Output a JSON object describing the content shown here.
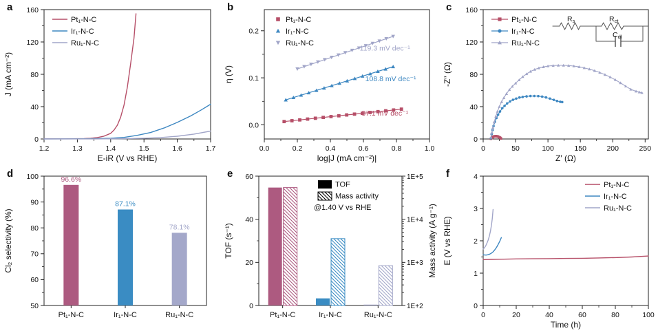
{
  "figure_background": "#ffffff",
  "colors": {
    "pt": "#b64f68",
    "ir": "#3d87c1",
    "ru": "#a1a5c8",
    "pt_bar": "#ad5a80",
    "ir_bar": "#3a8cc3",
    "ru_bar": "#a4a8ca",
    "axis": "#222222",
    "text": "#111111",
    "circuit": "#555555",
    "legend_black": "#000000"
  },
  "catalysts": [
    "Pt₁-N-C",
    "Ir₁-N-C",
    "Ru₁-N-C"
  ],
  "chart_data": [
    {
      "panel": "a",
      "type": "line",
      "xlabel": "E-iR (V vs RHE)",
      "ylabel": "J (mA cm⁻²)",
      "xlim": [
        1.2,
        1.7
      ],
      "xticks": [
        1.2,
        1.3,
        1.4,
        1.5,
        1.6,
        1.7
      ],
      "xtick_labels": [
        "1.2",
        "1.3",
        "1.4",
        "1.5",
        "1.6",
        "1.7"
      ],
      "ylim": [
        0,
        160
      ],
      "yticks": [
        0,
        40,
        80,
        120,
        160
      ],
      "ytick_labels": [
        "0",
        "40",
        "80",
        "120",
        "160"
      ],
      "legend_position": "top-left",
      "legend_style": "line",
      "series": [
        {
          "name": "Pt₁-N-C",
          "color": "pt",
          "points": [
            [
              1.2,
              0.2
            ],
            [
              1.26,
              0.2
            ],
            [
              1.3,
              0.3
            ],
            [
              1.32,
              0.5
            ],
            [
              1.34,
              0.9
            ],
            [
              1.36,
              1.8
            ],
            [
              1.38,
              3.5
            ],
            [
              1.4,
              7
            ],
            [
              1.41,
              11
            ],
            [
              1.42,
              17
            ],
            [
              1.43,
              27
            ],
            [
              1.44,
              42
            ],
            [
              1.45,
              64
            ],
            [
              1.46,
              93
            ],
            [
              1.47,
              125
            ],
            [
              1.476,
              155
            ]
          ]
        },
        {
          "name": "Ir₁-N-C",
          "color": "ir",
          "points": [
            [
              1.2,
              0.1
            ],
            [
              1.3,
              0.2
            ],
            [
              1.36,
              0.4
            ],
            [
              1.4,
              0.9
            ],
            [
              1.44,
              2.0
            ],
            [
              1.48,
              4.5
            ],
            [
              1.52,
              8.0
            ],
            [
              1.56,
              13.5
            ],
            [
              1.6,
              20.5
            ],
            [
              1.64,
              28.5
            ],
            [
              1.67,
              35.5
            ],
            [
              1.7,
              43.0
            ]
          ]
        },
        {
          "name": "Ru₁-N-C",
          "color": "ru",
          "points": [
            [
              1.2,
              0.0
            ],
            [
              1.36,
              0.1
            ],
            [
              1.44,
              0.4
            ],
            [
              1.5,
              0.9
            ],
            [
              1.55,
              1.8
            ],
            [
              1.6,
              3.4
            ],
            [
              1.65,
              6.0
            ],
            [
              1.7,
              9.8
            ]
          ]
        }
      ]
    },
    {
      "panel": "b",
      "type": "tafel",
      "xlabel": "log|J (mA cm⁻²)|",
      "ylabel": "η (V)",
      "xlim": [
        0.0,
        1.0
      ],
      "xticks": [
        0.0,
        0.2,
        0.4,
        0.6,
        0.8,
        1.0
      ],
      "xtick_labels": [
        "0.0",
        "0.2",
        "0.4",
        "0.6",
        "0.8",
        "1.0"
      ],
      "ylim": [
        -0.03,
        0.245
      ],
      "yticks": [
        0.0,
        0.1,
        0.2
      ],
      "ytick_labels": [
        "0.0",
        "0.1",
        "0.2"
      ],
      "legend_position": "top-left",
      "legend_style": "marker",
      "series": [
        {
          "name": "Pt₁-N-C",
          "color": "pt",
          "marker": "square",
          "fit": {
            "slope_V_per_dec": 0.0371,
            "intercept_V": 0.0026,
            "x0": 0.12,
            "x1": 0.83,
            "n": 16
          },
          "slope_label": "37.1 mV dec⁻¹",
          "label_pos": [
            0.73,
            0.02
          ]
        },
        {
          "name": "Ir₁-N-C",
          "color": "ir",
          "marker": "triangle-up",
          "fit": {
            "slope_V_per_dec": 0.1088,
            "intercept_V": 0.0389,
            "x0": 0.13,
            "x1": 0.78,
            "n": 15
          },
          "slope_label": "108.8 mV dec⁻¹",
          "label_pos": [
            0.765,
            0.093
          ]
        },
        {
          "name": "Ru₁-N-C",
          "color": "ru",
          "marker": "triangle-down",
          "fit": {
            "slope_V_per_dec": 0.1193,
            "intercept_V": 0.0951,
            "x0": 0.2,
            "x1": 0.78,
            "n": 15
          },
          "slope_label": "119.3 mV dec⁻¹",
          "label_pos": [
            0.73,
            0.158
          ]
        }
      ]
    },
    {
      "panel": "c",
      "type": "nyquist",
      "xlabel": "Z′ (Ω)",
      "ylabel": "-Z″ (Ω)",
      "xlim": [
        0,
        255
      ],
      "xticks": [
        0,
        50,
        100,
        150,
        200,
        250
      ],
      "xtick_labels": [
        "0",
        "50",
        "100",
        "150",
        "200",
        "250"
      ],
      "ylim": [
        0,
        160
      ],
      "yticks": [
        0,
        40,
        80,
        120,
        160
      ],
      "ytick_labels": [
        "0",
        "40",
        "80",
        "120",
        "160"
      ],
      "legend_position": "top-left",
      "legend_style": "line-marker",
      "circuit_labels": [
        {
          "main": "R",
          "sub": "s"
        },
        {
          "main": "R",
          "sub": "ct"
        },
        {
          "main": "C",
          "sub": "dl"
        }
      ],
      "series": [
        {
          "name": "Pt₁-N-C",
          "color": "pt",
          "marker": "square",
          "points": [
            [
              12,
              0.3
            ],
            [
              13,
              1.2
            ],
            [
              14,
              2.0
            ],
            [
              15,
              2.6
            ],
            [
              16.5,
              3.1
            ],
            [
              18,
              3.4
            ],
            [
              19.5,
              3.5
            ],
            [
              21,
              3.4
            ],
            [
              22.5,
              3.1
            ],
            [
              24,
              2.6
            ],
            [
              25.5,
              2.0
            ],
            [
              26.5,
              1.3
            ],
            [
              27.5,
              0.6
            ]
          ]
        },
        {
          "name": "Ir₁-N-C",
          "color": "ir",
          "marker": "circle",
          "points": [
            [
              12,
              1
            ],
            [
              13,
              6
            ],
            [
              14.5,
              11
            ],
            [
              16,
              16
            ],
            [
              18,
              21
            ],
            [
              20.5,
              26
            ],
            [
              23,
              30
            ],
            [
              26,
              34
            ],
            [
              29.5,
              38
            ],
            [
              33,
              41
            ],
            [
              37,
              44
            ],
            [
              41.5,
              46.5
            ],
            [
              46,
              48.5
            ],
            [
              51,
              50
            ],
            [
              56,
              51.3
            ],
            [
              61,
              52
            ],
            [
              67,
              52.7
            ],
            [
              73,
              53.1
            ],
            [
              79,
              53.2
            ],
            [
              85,
              53
            ],
            [
              91,
              52.4
            ],
            [
              97,
              51.4
            ],
            [
              103,
              50
            ],
            [
              109,
              48.4
            ],
            [
              114,
              47
            ],
            [
              119,
              46
            ],
            [
              122,
              45.6
            ]
          ]
        },
        {
          "name": "Ru₁-N-C",
          "color": "ru",
          "marker": "triangle-up",
          "points": [
            [
              12,
              2
            ],
            [
              13.5,
              8
            ],
            [
              15,
              14
            ],
            [
              17,
              21
            ],
            [
              19.5,
              28
            ],
            [
              22,
              34
            ],
            [
              25,
              40
            ],
            [
              28.5,
              46
            ],
            [
              32,
              51
            ],
            [
              36,
              56
            ],
            [
              40.5,
              61
            ],
            [
              45,
              65
            ],
            [
              50,
              69
            ],
            [
              55.5,
              73
            ],
            [
              61,
              77
            ],
            [
              67,
              80.5
            ],
            [
              73,
              83.5
            ],
            [
              79.5,
              86
            ],
            [
              86,
              87.8
            ],
            [
              93,
              89.2
            ],
            [
              100,
              90.2
            ],
            [
              108,
              90.8
            ],
            [
              116,
              91.1
            ],
            [
              124,
              91.1
            ],
            [
              132,
              90.8
            ],
            [
              140,
              90.2
            ],
            [
              148,
              89.3
            ],
            [
              156,
              88
            ],
            [
              164,
              86.4
            ],
            [
              172,
              84.5
            ],
            [
              180,
              82.2
            ],
            [
              188,
              79.6
            ],
            [
              196,
              76.6
            ],
            [
              204,
              73.2
            ],
            [
              212,
              69.4
            ],
            [
              220,
              65.3
            ],
            [
              228,
              61.4
            ],
            [
              236,
              59
            ],
            [
              241,
              58
            ],
            [
              245,
              57.2
            ]
          ]
        }
      ]
    },
    {
      "panel": "d",
      "type": "bar",
      "ylabel": "Cl₂ selectivity (%)",
      "categories": [
        "Pt₁-N-C",
        "Ir₁-N-C",
        "Ru₁-N-C"
      ],
      "values": [
        96.6,
        87.1,
        78.1
      ],
      "value_labels": [
        "96.6%",
        "87.1%",
        "78.1%"
      ],
      "bar_colors": [
        "pt_bar",
        "ir_bar",
        "ru_bar"
      ],
      "ylim": [
        50,
        100
      ],
      "yticks": [
        50,
        60,
        70,
        80,
        90,
        100
      ],
      "ytick_labels": [
        "50",
        "60",
        "70",
        "80",
        "90",
        "100"
      ]
    },
    {
      "panel": "e",
      "type": "dualbar",
      "ylabel": "TOF (s⁻¹)",
      "y2label": "Mass activity (A g⁻¹)",
      "categories": [
        "Pt₁-N-C",
        "Ir₁-N-C",
        "Ru₁-N-C"
      ],
      "bar_colors": [
        "pt_bar",
        "ir_bar",
        "ru_bar"
      ],
      "series": [
        {
          "name": "TOF",
          "axis": "left",
          "style": "solid",
          "values": [
            54.7,
            3.3,
            0.4
          ]
        },
        {
          "name": "Mass activity",
          "axis": "right",
          "style": "hatched",
          "values": [
            54300,
            3550,
            840
          ]
        }
      ],
      "legend_note": "@1.40 V vs RHE",
      "ylim": [
        0,
        60
      ],
      "yticks": [
        0,
        20,
        40,
        60
      ],
      "ytick_labels": [
        "0",
        "20",
        "40",
        "60"
      ],
      "y2_log_decades": [
        2,
        5
      ],
      "y2tick_labels": [
        "1E+2",
        "1E+3",
        "1E+4",
        "1E+5"
      ]
    },
    {
      "panel": "f",
      "type": "line",
      "xlabel": "Time (h)",
      "ylabel": "E (V vs RHE)",
      "xlim": [
        0,
        100
      ],
      "xticks": [
        0,
        20,
        40,
        60,
        80,
        100
      ],
      "xtick_labels": [
        "0",
        "20",
        "40",
        "60",
        "80",
        "100"
      ],
      "ylim": [
        0,
        4
      ],
      "yticks": [
        0,
        1,
        2,
        3,
        4
      ],
      "ytick_labels": [
        "0",
        "1",
        "2",
        "3",
        "4"
      ],
      "legend_position": "top-right",
      "legend_style": "line",
      "series": [
        {
          "name": "Pt₁-N-C",
          "color": "pt",
          "points": [
            [
              0,
              1.42
            ],
            [
              5,
              1.425
            ],
            [
              10,
              1.43
            ],
            [
              20,
              1.44
            ],
            [
              30,
              1.445
            ],
            [
              40,
              1.45
            ],
            [
              50,
              1.455
            ],
            [
              60,
              1.46
            ],
            [
              70,
              1.47
            ],
            [
              80,
              1.48
            ],
            [
              90,
              1.5
            ],
            [
              100,
              1.53
            ]
          ]
        },
        {
          "name": "Ir₁-N-C",
          "color": "ir",
          "points": [
            [
              0,
              1.57
            ],
            [
              1,
              1.56
            ],
            [
              2,
              1.56
            ],
            [
              3,
              1.57
            ],
            [
              4,
              1.59
            ],
            [
              5,
              1.62
            ],
            [
              6,
              1.66
            ],
            [
              7,
              1.72
            ],
            [
              8,
              1.79
            ],
            [
              9,
              1.88
            ],
            [
              10,
              1.98
            ],
            [
              11,
              2.1
            ]
          ]
        },
        {
          "name": "Ru₁-N-C",
          "color": "ru",
          "points": [
            [
              0,
              1.75
            ],
            [
              0.7,
              1.78
            ],
            [
              1.5,
              1.84
            ],
            [
              2.2,
              1.92
            ],
            [
              3,
              2.02
            ],
            [
              3.7,
              2.14
            ],
            [
              4.4,
              2.3
            ],
            [
              5,
              2.48
            ],
            [
              5.5,
              2.68
            ],
            [
              6,
              2.97
            ]
          ]
        }
      ]
    }
  ]
}
